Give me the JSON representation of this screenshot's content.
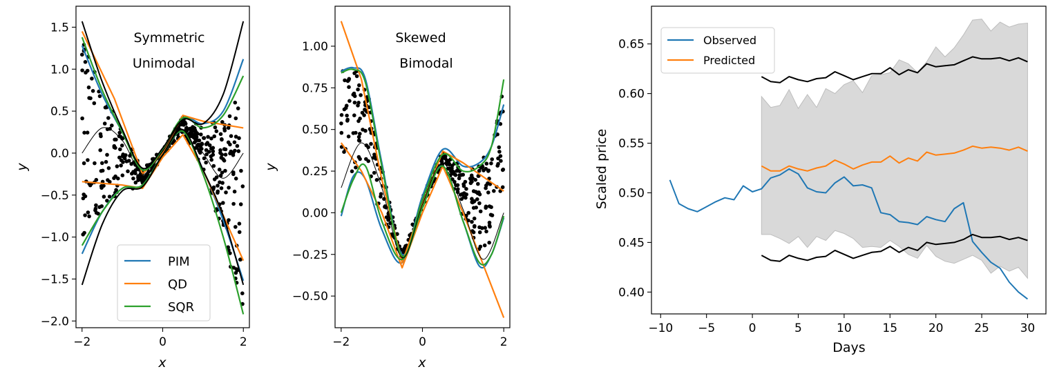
{
  "colors": {
    "PIM": "#1f77b4",
    "QD": "#ff7f0e",
    "SQR": "#2ca02c",
    "truth": "#000000",
    "points": "#000000",
    "band": "#d9d9d9",
    "Observed": "#1f77b4",
    "Predicted": "#ff7f0e"
  },
  "chart_data": [
    {
      "type": "line",
      "annotation": [
        "Symmetric",
        "Unimodal"
      ],
      "xlabel": "x",
      "ylabel": "y",
      "xlim": [
        -2.15,
        2.15
      ],
      "ylim": [
        -2.08,
        1.75
      ],
      "xticks": [
        -2,
        0,
        2
      ],
      "xtick_labels": [
        "−2",
        "0",
        "2"
      ],
      "yticks": [
        -2.0,
        -1.5,
        -1.0,
        -0.5,
        0.0,
        0.5,
        1.0,
        1.5
      ],
      "ytick_labels": [
        "−2.0",
        "−1.5",
        "−1.0",
        "−0.5",
        "0.0",
        "0.5",
        "1.0",
        "1.5"
      ],
      "legend": {
        "position": "lower-right",
        "entries": [
          "PIM",
          "QD",
          "SQR"
        ]
      },
      "series": [
        {
          "name": "PIM",
          "role": "upper",
          "x": [
            -2,
            -1.5,
            -1.0,
            -0.5,
            0,
            0.5,
            1.0,
            1.5,
            2
          ],
          "y": [
            1.28,
            0.7,
            0.25,
            -0.2,
            0.05,
            0.42,
            0.35,
            0.5,
            1.12
          ]
        },
        {
          "name": "PIM",
          "role": "lower",
          "x": [
            -2,
            -1.5,
            -1.0,
            -0.5,
            0,
            0.5,
            1.0,
            1.5,
            2
          ],
          "y": [
            -1.2,
            -0.7,
            -0.42,
            -0.38,
            -0.02,
            0.26,
            -0.2,
            -0.8,
            -1.52
          ]
        },
        {
          "name": "QD",
          "role": "upper",
          "x": [
            -2,
            -1.2,
            -0.5,
            0,
            0.5,
            1.0,
            2
          ],
          "y": [
            1.45,
            0.65,
            -0.25,
            0.0,
            0.45,
            0.38,
            0.3
          ]
        },
        {
          "name": "QD",
          "role": "lower",
          "x": [
            -2,
            -1.0,
            -0.5,
            0,
            0.5,
            1.0,
            2
          ],
          "y": [
            -0.34,
            -0.38,
            -0.42,
            -0.05,
            0.22,
            -0.2,
            -1.28
          ]
        },
        {
          "name": "SQR",
          "role": "upper",
          "x": [
            -2,
            -1.5,
            -1.0,
            -0.5,
            0,
            0.5,
            1.0,
            1.5,
            2
          ],
          "y": [
            1.38,
            0.75,
            0.25,
            -0.2,
            0.05,
            0.42,
            0.3,
            0.45,
            0.92
          ]
        },
        {
          "name": "SQR",
          "role": "lower",
          "x": [
            -2,
            -1.5,
            -1.0,
            -0.5,
            0,
            0.5,
            1.0,
            1.5,
            2
          ],
          "y": [
            -1.1,
            -0.7,
            -0.42,
            -0.38,
            -0.02,
            0.26,
            -0.25,
            -1.0,
            -1.92
          ]
        },
        {
          "name": "",
          "role": "truth-upper",
          "x": [
            -2,
            -1.5,
            -1.0,
            -0.5,
            0,
            0.5,
            1.0,
            1.5,
            2
          ],
          "y": [
            1.57,
            0.85,
            0.28,
            -0.18,
            0.06,
            0.4,
            0.35,
            0.7,
            1.57
          ]
        },
        {
          "name": "",
          "role": "truth-lower",
          "x": [
            -2,
            -1.5,
            -1.0,
            -0.5,
            0,
            0.5,
            1.0,
            1.5,
            2
          ],
          "y": [
            -1.57,
            -0.85,
            -0.45,
            -0.4,
            -0.02,
            0.28,
            -0.2,
            -0.75,
            -1.57
          ]
        },
        {
          "name": "",
          "role": "truth-median",
          "x": [
            -2,
            -1.5,
            -1.0,
            -0.5,
            0,
            0.5,
            1.0,
            1.5,
            2
          ],
          "y": [
            0.0,
            0.3,
            0.15,
            -0.25,
            0.02,
            0.35,
            0.0,
            -0.3,
            0.0
          ]
        }
      ]
    },
    {
      "type": "line",
      "annotation": [
        "Skewed",
        "Bimodal"
      ],
      "xlabel": "x",
      "ylabel": "y",
      "xlim": [
        -2.15,
        2.15
      ],
      "ylim": [
        -0.69,
        1.24
      ],
      "xticks": [
        -2,
        0,
        2
      ],
      "xtick_labels": [
        "−2",
        "0",
        "2"
      ],
      "yticks": [
        -0.5,
        -0.25,
        0.0,
        0.25,
        0.5,
        0.75,
        1.0
      ],
      "ytick_labels": [
        "−0.50",
        "−0.25",
        "0.00",
        "0.25",
        "0.50",
        "0.75",
        "1.00"
      ],
      "series": [
        {
          "name": "PIM",
          "role": "upper",
          "x": [
            -2,
            -1.7,
            -1.4,
            -1.0,
            -0.5,
            0,
            0.5,
            1.0,
            1.4,
            1.7,
            2
          ],
          "y": [
            0.85,
            0.87,
            0.8,
            0.3,
            -0.25,
            0.1,
            0.38,
            0.28,
            0.3,
            0.4,
            0.65
          ]
        },
        {
          "name": "PIM",
          "role": "lower",
          "x": [
            -2,
            -1.7,
            -1.4,
            -1.0,
            -0.5,
            0,
            0.5,
            1.0,
            1.4,
            1.7,
            2
          ],
          "y": [
            -0.02,
            0.22,
            0.2,
            -0.1,
            -0.3,
            0.05,
            0.28,
            -0.05,
            -0.32,
            -0.25,
            -0.03
          ]
        },
        {
          "name": "QD",
          "role": "upper",
          "x": [
            -2,
            -1.5,
            -1.0,
            -0.5,
            0,
            0.5,
            1.0,
            2
          ],
          "y": [
            1.15,
            0.8,
            0.2,
            -0.3,
            0.05,
            0.37,
            0.3,
            0.13
          ]
        },
        {
          "name": "QD",
          "role": "lower",
          "x": [
            -2,
            -1.5,
            -1.0,
            -0.5,
            0,
            0.5,
            1.0,
            2
          ],
          "y": [
            0.42,
            0.25,
            0.0,
            -0.33,
            0.0,
            0.28,
            0.0,
            -0.63
          ]
        },
        {
          "name": "SQR",
          "role": "upper",
          "x": [
            -2,
            -1.7,
            -1.4,
            -1.0,
            -0.5,
            0,
            0.5,
            1.0,
            1.4,
            1.7,
            2
          ],
          "y": [
            0.84,
            0.86,
            0.78,
            0.28,
            -0.26,
            0.08,
            0.35,
            0.25,
            0.28,
            0.4,
            0.8
          ]
        },
        {
          "name": "SQR",
          "role": "lower",
          "x": [
            -2,
            -1.7,
            -1.4,
            -1.0,
            -0.5,
            0,
            0.5,
            1.0,
            1.4,
            1.7,
            2
          ],
          "y": [
            0.0,
            0.2,
            0.28,
            -0.05,
            -0.28,
            0.03,
            0.28,
            -0.05,
            -0.3,
            -0.25,
            -0.02
          ]
        },
        {
          "name": "",
          "role": "truth-median",
          "x": [
            -2,
            -1.5,
            -1.0,
            -0.5,
            0,
            0.5,
            1.0,
            1.5,
            2
          ],
          "y": [
            0.15,
            0.42,
            0.15,
            -0.27,
            0.05,
            0.3,
            0.02,
            -0.28,
            0.0
          ]
        }
      ]
    },
    {
      "type": "line",
      "xlabel": "Days",
      "ylabel": "Scaled price",
      "xlim": [
        -11,
        32
      ],
      "ylim": [
        0.378,
        0.688
      ],
      "xticks": [
        -10,
        -5,
        0,
        5,
        10,
        15,
        20,
        25,
        30
      ],
      "xtick_labels": [
        "−10",
        "−5",
        "0",
        "5",
        "10",
        "15",
        "20",
        "25",
        "30"
      ],
      "yticks": [
        0.4,
        0.45,
        0.5,
        0.55,
        0.6,
        0.65
      ],
      "ytick_labels": [
        "0.40",
        "0.45",
        "0.50",
        "0.55",
        "0.60",
        "0.65"
      ],
      "legend": {
        "position": "top-left",
        "entries": [
          "Observed",
          "Predicted"
        ]
      },
      "series": [
        {
          "name": "Observed",
          "x": [
            -9,
            -8,
            -7,
            -6,
            -5,
            -4,
            -3,
            -2,
            -1,
            0,
            1,
            2,
            3,
            4,
            5,
            6,
            7,
            8,
            9,
            10,
            11,
            12,
            13,
            14,
            15,
            16,
            17,
            18,
            19,
            20,
            21,
            22,
            23,
            24,
            25,
            26,
            27,
            28,
            29,
            30
          ],
          "y": [
            0.513,
            0.489,
            0.484,
            0.481,
            0.486,
            0.491,
            0.495,
            0.493,
            0.507,
            0.501,
            0.504,
            0.515,
            0.518,
            0.524,
            0.519,
            0.505,
            0.501,
            0.5,
            0.51,
            0.516,
            0.507,
            0.508,
            0.505,
            0.48,
            0.478,
            0.471,
            0.47,
            0.468,
            0.476,
            0.473,
            0.471,
            0.484,
            0.49,
            0.451,
            0.44,
            0.43,
            0.424,
            0.41,
            0.4,
            0.393
          ]
        },
        {
          "name": "Predicted",
          "x": [
            1,
            2,
            3,
            4,
            5,
            6,
            7,
            8,
            9,
            10,
            11,
            12,
            13,
            14,
            15,
            16,
            17,
            18,
            19,
            20,
            21,
            22,
            23,
            24,
            25,
            26,
            27,
            28,
            29,
            30
          ],
          "y": [
            0.527,
            0.522,
            0.522,
            0.527,
            0.524,
            0.522,
            0.525,
            0.527,
            0.533,
            0.529,
            0.524,
            0.528,
            0.531,
            0.531,
            0.537,
            0.53,
            0.535,
            0.532,
            0.541,
            0.538,
            0.539,
            0.54,
            0.543,
            0.547,
            0.545,
            0.546,
            0.545,
            0.543,
            0.546,
            0.542
          ]
        },
        {
          "name": "",
          "role": "upper-bound",
          "x": [
            1,
            2,
            3,
            4,
            5,
            6,
            7,
            8,
            9,
            10,
            11,
            12,
            13,
            14,
            15,
            16,
            17,
            18,
            19,
            20,
            21,
            22,
            23,
            24,
            25,
            26,
            27,
            28,
            29,
            30
          ],
          "y": [
            0.617,
            0.612,
            0.611,
            0.617,
            0.614,
            0.612,
            0.615,
            0.616,
            0.622,
            0.618,
            0.614,
            0.617,
            0.62,
            0.62,
            0.626,
            0.619,
            0.624,
            0.621,
            0.63,
            0.627,
            0.628,
            0.629,
            0.633,
            0.637,
            0.635,
            0.635,
            0.636,
            0.633,
            0.636,
            0.632
          ]
        },
        {
          "name": "",
          "role": "lower-bound",
          "x": [
            1,
            2,
            3,
            4,
            5,
            6,
            7,
            8,
            9,
            10,
            11,
            12,
            13,
            14,
            15,
            16,
            17,
            18,
            19,
            20,
            21,
            22,
            23,
            24,
            25,
            26,
            27,
            28,
            29,
            30
          ],
          "y": [
            0.437,
            0.432,
            0.431,
            0.437,
            0.434,
            0.432,
            0.435,
            0.436,
            0.442,
            0.438,
            0.434,
            0.437,
            0.44,
            0.441,
            0.446,
            0.44,
            0.445,
            0.442,
            0.45,
            0.448,
            0.449,
            0.45,
            0.453,
            0.458,
            0.455,
            0.455,
            0.456,
            0.453,
            0.455,
            0.452
          ]
        },
        {
          "name": "",
          "role": "band-upper",
          "x": [
            1,
            2,
            3,
            4,
            5,
            6,
            7,
            8,
            9,
            10,
            11,
            12,
            13,
            14,
            15,
            16,
            17,
            18,
            19,
            20,
            21,
            22,
            23,
            24,
            25,
            26,
            27,
            28,
            29,
            30
          ],
          "y": [
            0.597,
            0.586,
            0.588,
            0.604,
            0.585,
            0.599,
            0.586,
            0.605,
            0.6,
            0.609,
            0.613,
            0.601,
            0.618,
            0.619,
            0.621,
            0.634,
            0.63,
            0.621,
            0.632,
            0.647,
            0.637,
            0.646,
            0.659,
            0.674,
            0.675,
            0.663,
            0.672,
            0.667,
            0.67,
            0.671
          ]
        },
        {
          "name": "",
          "role": "band-lower",
          "x": [
            1,
            2,
            3,
            4,
            5,
            6,
            7,
            8,
            9,
            10,
            11,
            12,
            13,
            14,
            15,
            16,
            17,
            18,
            19,
            20,
            21,
            22,
            23,
            24,
            25,
            26,
            27,
            28,
            29,
            30
          ],
          "y": [
            0.458,
            0.458,
            0.454,
            0.449,
            0.456,
            0.445,
            0.456,
            0.452,
            0.462,
            0.459,
            0.454,
            0.445,
            0.446,
            0.445,
            0.452,
            0.446,
            0.438,
            0.434,
            0.447,
            0.436,
            0.431,
            0.429,
            0.433,
            0.437,
            0.432,
            0.419,
            0.426,
            0.421,
            0.425,
            0.414
          ]
        }
      ]
    }
  ]
}
